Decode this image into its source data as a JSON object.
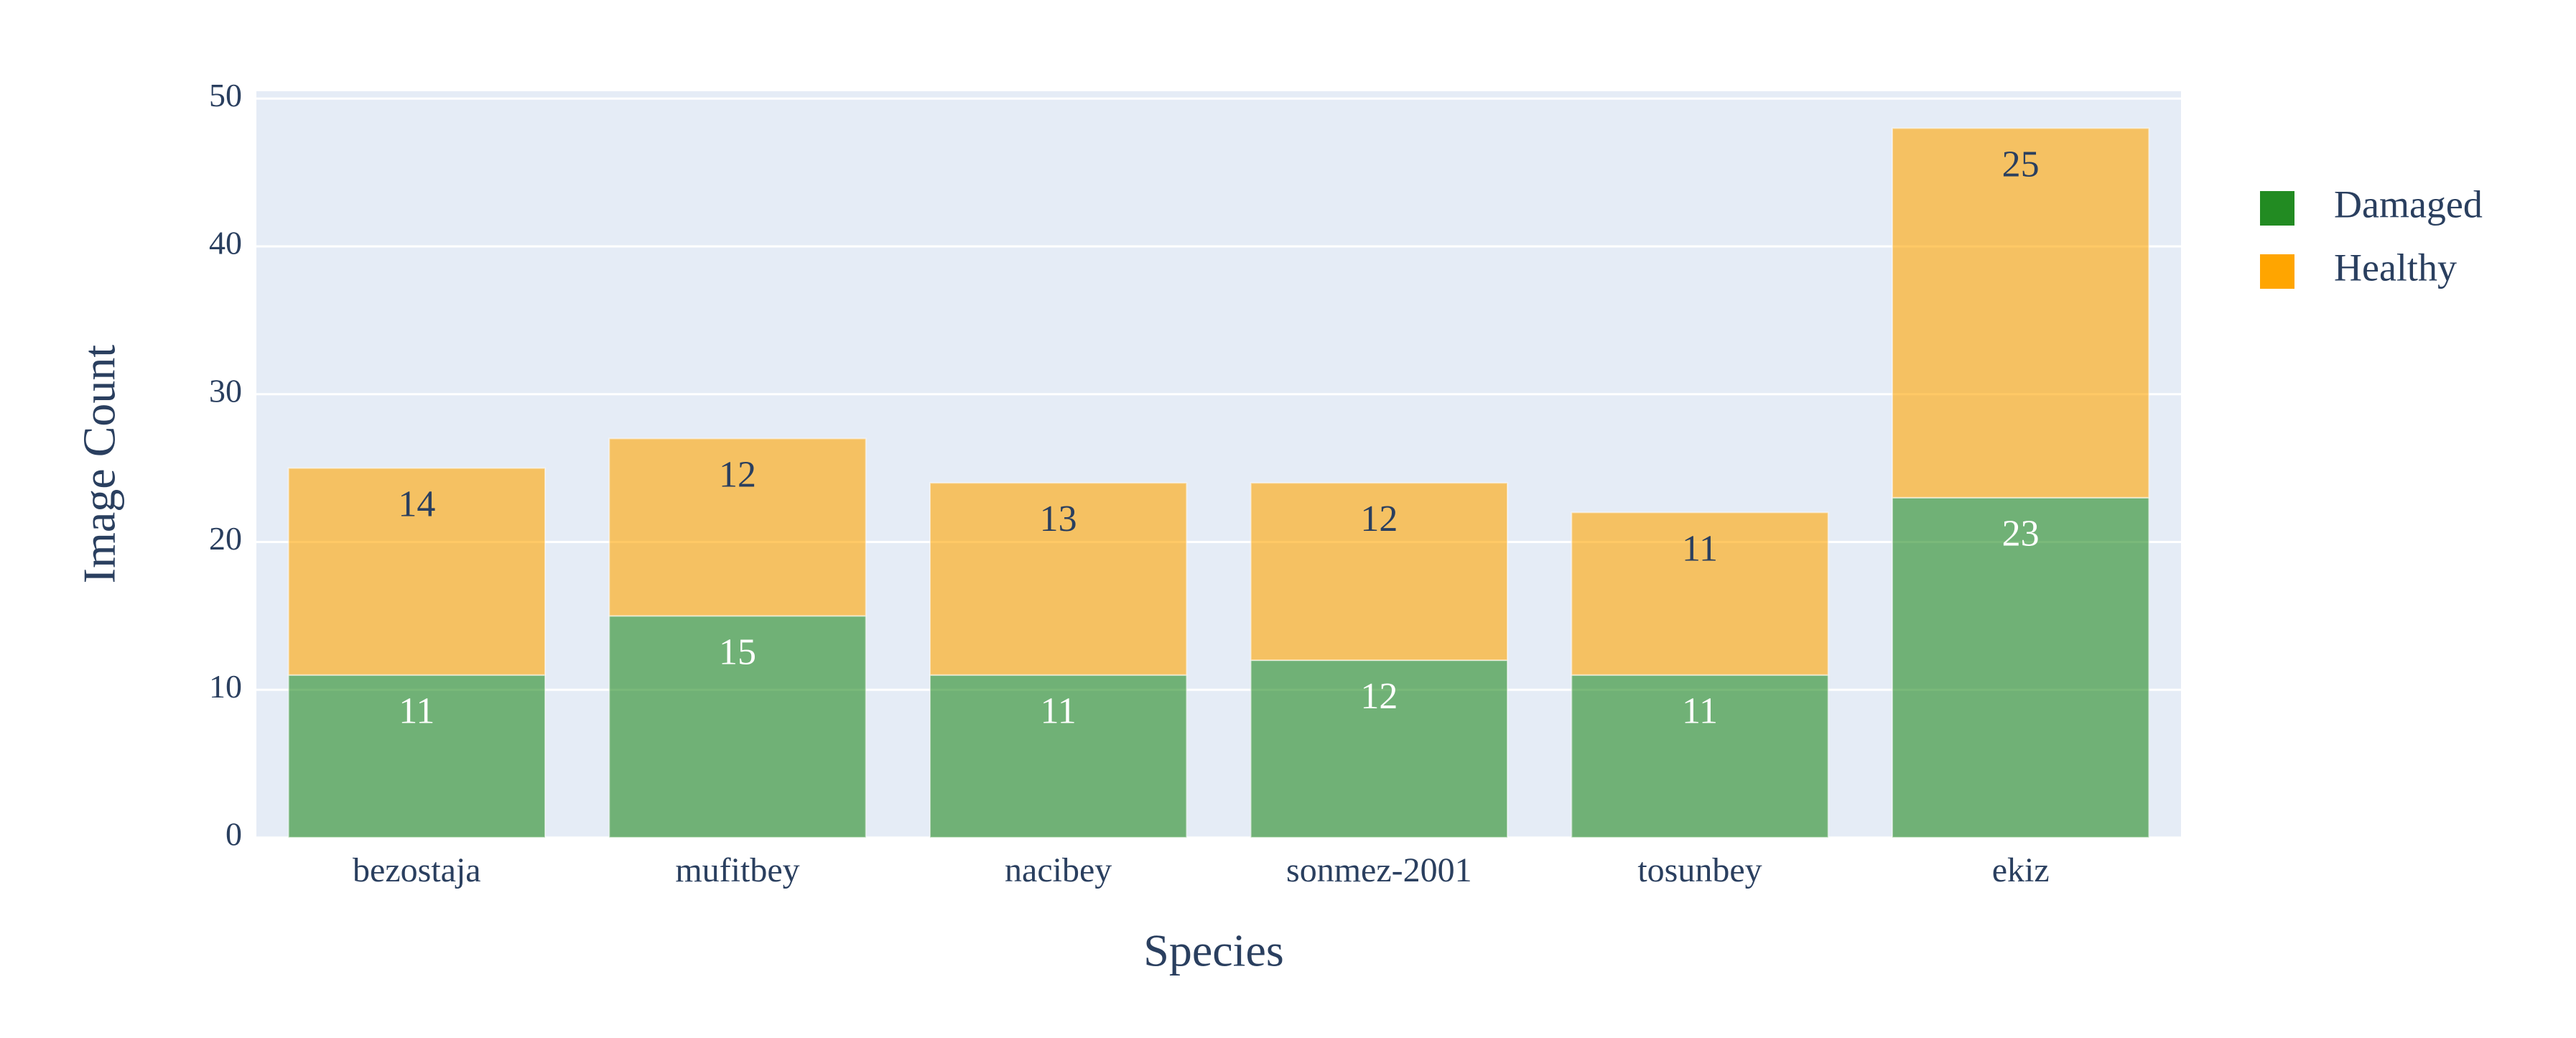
{
  "chart_data": {
    "type": "stacked_bar",
    "x_label": "Species",
    "y_label": "Image Count",
    "categories": [
      "bezostaja",
      "mufitbey",
      "nacibey",
      "sonmez-2001",
      "tosunbey",
      "ekiz"
    ],
    "series": [
      {
        "name": "Damaged",
        "color": "#228b22",
        "values": [
          11,
          15,
          11,
          12,
          11,
          23
        ]
      },
      {
        "name": "Healthy",
        "color": "#ffa500",
        "values": [
          14,
          12,
          13,
          12,
          11,
          25
        ]
      }
    ],
    "ylim": [
      0,
      50.5
    ],
    "yticks": [
      0,
      10,
      20,
      30,
      40,
      50
    ],
    "grid": true,
    "legend": "right"
  }
}
